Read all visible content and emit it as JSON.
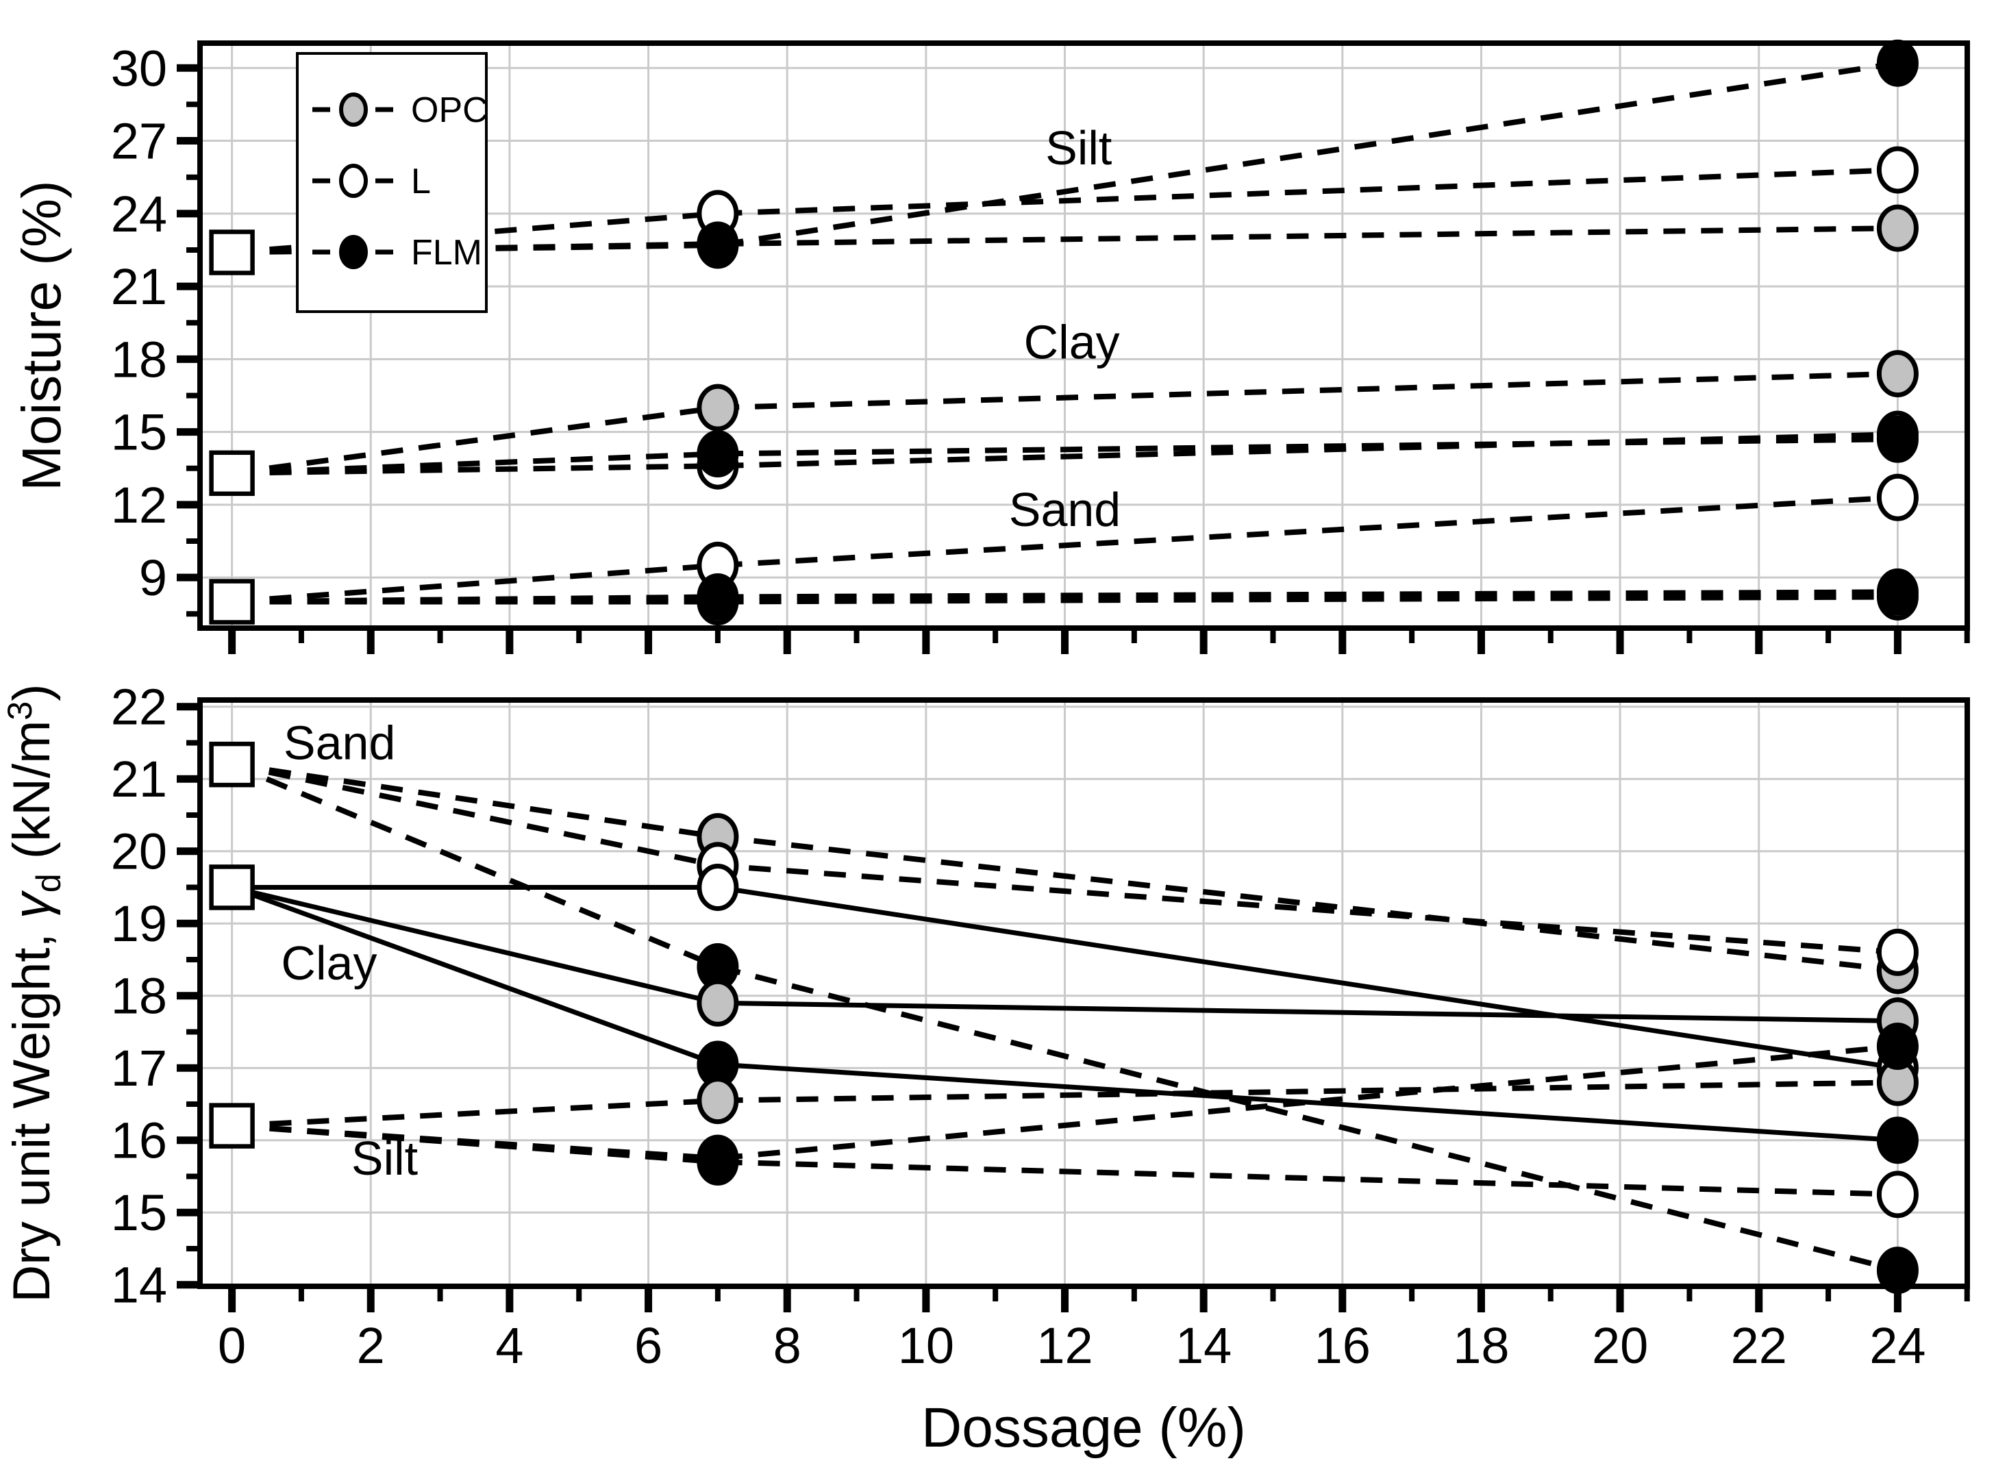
{
  "chart_data": {
    "type": "line",
    "title": "",
    "xlabel": "Dossage (%)",
    "x_ticks_labeled": [
      0,
      2,
      4,
      6,
      8,
      10,
      12,
      14,
      16,
      18,
      20,
      22,
      24
    ],
    "xlim": [
      -0.46,
      25.01
    ],
    "grid": true,
    "legend": {
      "position": "top-left",
      "entries": [
        {
          "label": "OPC",
          "marker": "gray"
        },
        {
          "label": "L",
          "marker": "open"
        },
        {
          "label": "FLM",
          "marker": "black"
        }
      ]
    },
    "colors": {
      "marker_gray": "#c2c2c2",
      "marker_black": "#000000",
      "marker_open": "#ffffff",
      "line_black": "#000000",
      "grid_gray": "#cacaca"
    },
    "panels": [
      {
        "name": "moisture",
        "ylabel_parts": [
          {
            "t": "Moisture (%)"
          }
        ],
        "ylim": [
          6.9,
          31.0
        ],
        "yticks": [
          9,
          12,
          15,
          18,
          21,
          24,
          27,
          30
        ],
        "annotations": [
          {
            "text": "Silt",
            "x": 12.2,
            "y": 26.7
          },
          {
            "text": "Clay",
            "x": 12.1,
            "y": 18.7
          },
          {
            "text": "Sand",
            "x": 12.0,
            "y": 11.8
          }
        ],
        "initial_points": [
          {
            "soil": "Silt",
            "x": 0,
            "y": 22.4
          },
          {
            "soil": "Clay",
            "x": 0,
            "y": 13.3
          },
          {
            "soil": "Sand",
            "x": 0,
            "y": 8.0
          }
        ],
        "series": [
          {
            "soil": "Sand",
            "binder": "OPC",
            "marker": "gray",
            "line": "dashed",
            "points": [
              [
                0,
                8.0
              ],
              [
                7,
                8.0
              ],
              [
                24,
                8.2
              ]
            ]
          },
          {
            "soil": "Sand",
            "binder": "L",
            "marker": "open",
            "line": "dashed",
            "points": [
              [
                0,
                8.0
              ],
              [
                7,
                9.5
              ],
              [
                24,
                12.3
              ]
            ]
          },
          {
            "soil": "Sand",
            "binder": "FLM",
            "marker": "black",
            "line": "dashed",
            "points": [
              [
                0,
                8.0
              ],
              [
                7,
                8.2
              ],
              [
                24,
                8.4
              ]
            ]
          },
          {
            "soil": "Clay",
            "binder": "OPC",
            "marker": "gray",
            "line": "dashed",
            "points": [
              [
                0,
                13.3
              ],
              [
                7,
                16.0
              ],
              [
                24,
                17.4
              ]
            ]
          },
          {
            "soil": "Clay",
            "binder": "L",
            "marker": "open",
            "line": "dashed",
            "points": [
              [
                0,
                13.3
              ],
              [
                7,
                13.6
              ],
              [
                24,
                14.9
              ]
            ]
          },
          {
            "soil": "Clay",
            "binder": "FLM",
            "marker": "black",
            "line": "dashed",
            "points": [
              [
                0,
                13.3
              ],
              [
                7,
                14.1
              ],
              [
                24,
                14.7
              ]
            ]
          },
          {
            "soil": "Silt",
            "binder": "OPC",
            "marker": "gray",
            "line": "dashed",
            "points": [
              [
                0,
                22.4
              ],
              [
                7,
                22.75
              ],
              [
                24,
                23.4
              ]
            ]
          },
          {
            "soil": "Silt",
            "binder": "L",
            "marker": "open",
            "line": "dashed",
            "points": [
              [
                0,
                22.4
              ],
              [
                7,
                24.0
              ],
              [
                24,
                25.8
              ]
            ]
          },
          {
            "soil": "Silt",
            "binder": "FLM",
            "marker": "black",
            "line": "dashed",
            "points": [
              [
                0,
                22.4
              ],
              [
                7,
                22.7
              ],
              [
                24,
                30.2
              ]
            ]
          }
        ]
      },
      {
        "name": "dry_unit_weight",
        "ylabel_parts": [
          {
            "t": "Dry unit Weight, "
          },
          {
            "t": "γ",
            "italic": true
          },
          {
            "t": "d",
            "sub": true
          },
          {
            "t": " (kN/m"
          },
          {
            "t": "3",
            "sup": true
          },
          {
            "t": ")"
          }
        ],
        "ylim": [
          13.98,
          22.09
        ],
        "yticks": [
          14,
          15,
          16,
          17,
          18,
          19,
          20,
          21,
          22
        ],
        "annotations": [
          {
            "text": "Sand",
            "x": 1.55,
            "y": 21.5
          },
          {
            "text": "Clay",
            "x": 1.4,
            "y": 18.45
          },
          {
            "text": "Silt",
            "x": 2.2,
            "y": 15.75
          }
        ],
        "initial_points": [
          {
            "soil": "Sand",
            "x": 0,
            "y": 21.2
          },
          {
            "soil": "Clay",
            "x": 0,
            "y": 19.5
          },
          {
            "soil": "Silt",
            "x": 0,
            "y": 16.2
          }
        ],
        "series": [
          {
            "soil": "Sand",
            "binder": "OPC",
            "marker": "gray",
            "line": "dashed",
            "points": [
              [
                0,
                21.2
              ],
              [
                7,
                20.2
              ],
              [
                24,
                18.35
              ]
            ]
          },
          {
            "soil": "Sand",
            "binder": "L",
            "marker": "open",
            "line": "dashed",
            "points": [
              [
                0,
                21.2
              ],
              [
                7,
                19.8
              ],
              [
                24,
                18.6
              ]
            ]
          },
          {
            "soil": "Sand",
            "binder": "FLM",
            "marker": "black",
            "line": "dashed",
            "points": [
              [
                0,
                21.2
              ],
              [
                7,
                18.4
              ],
              [
                24,
                14.2
              ]
            ]
          },
          {
            "soil": "Clay",
            "binder": "OPC",
            "marker": "gray",
            "line": "solid",
            "points": [
              [
                0,
                19.5
              ],
              [
                7,
                17.9
              ],
              [
                24,
                17.65
              ]
            ]
          },
          {
            "soil": "Clay",
            "binder": "L",
            "marker": "open",
            "line": "solid",
            "points": [
              [
                0,
                19.5
              ],
              [
                7,
                19.5
              ],
              [
                24,
                17.0
              ]
            ]
          },
          {
            "soil": "Clay",
            "binder": "FLM",
            "marker": "black",
            "line": "solid",
            "points": [
              [
                0,
                19.5
              ],
              [
                7,
                17.05
              ],
              [
                24,
                16.0
              ]
            ]
          },
          {
            "soil": "Silt",
            "binder": "OPC",
            "marker": "gray",
            "line": "dashed",
            "points": [
              [
                0,
                16.2
              ],
              [
                7,
                16.55
              ],
              [
                24,
                16.8
              ]
            ]
          },
          {
            "soil": "Silt",
            "binder": "L",
            "marker": "open",
            "line": "dashed",
            "points": [
              [
                0,
                16.2
              ],
              [
                7,
                15.7
              ],
              [
                24,
                15.25
              ]
            ]
          },
          {
            "soil": "Silt",
            "binder": "FLM",
            "marker": "black",
            "line": "dashed",
            "points": [
              [
                0,
                16.2
              ],
              [
                7,
                15.75
              ],
              [
                24,
                17.3
              ]
            ]
          }
        ]
      }
    ]
  }
}
